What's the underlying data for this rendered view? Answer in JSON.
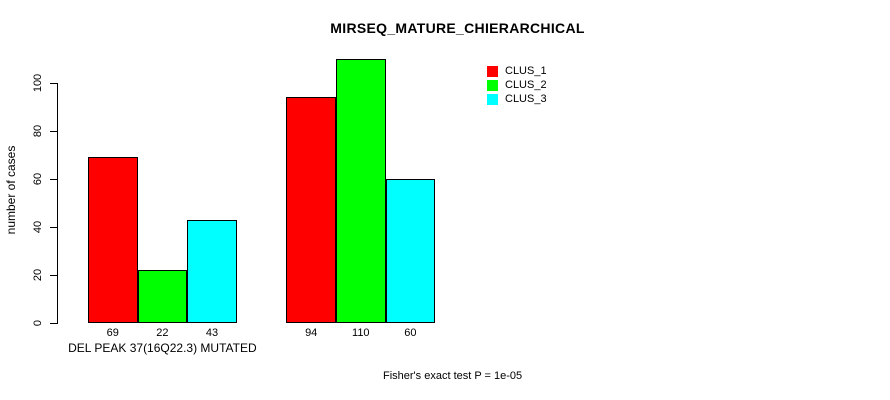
{
  "page": {
    "background_color": "#ffffff",
    "text_color": "#000000"
  },
  "chart_data": {
    "type": "bar",
    "title": "MIRSEQ_MATURE_CHIERARCHICAL",
    "ylabel": "number of cases",
    "xlabel": "",
    "categories": [
      "DEL PEAK 37(16Q22.3) MUTATED",
      ""
    ],
    "series": [
      {
        "name": "CLUS_1",
        "color": "#ff0000",
        "values": [
          69,
          94
        ]
      },
      {
        "name": "CLUS_2",
        "color": "#00ff00",
        "values": [
          22,
          110
        ]
      },
      {
        "name": "CLUS_3",
        "color": "#00ffff",
        "values": [
          43,
          60
        ]
      }
    ],
    "bar_value_labels": [
      [
        "69",
        "22",
        "43"
      ],
      [
        "94",
        "110",
        "60"
      ]
    ],
    "yticks": [
      0,
      20,
      40,
      60,
      80,
      100
    ],
    "ylim": [
      0,
      110
    ],
    "grid": false,
    "legend_position": "top-right",
    "bar_border_color": "#000000",
    "annotation": "Fisher's exact test P = 1e-05"
  }
}
